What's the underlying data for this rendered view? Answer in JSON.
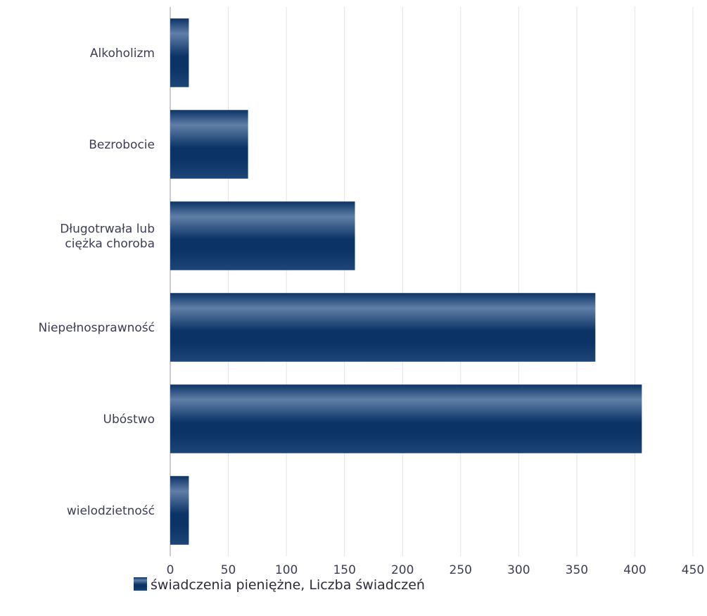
{
  "chart_data": {
    "type": "bar",
    "orientation": "horizontal",
    "categories": [
      [
        "Alkoholizm"
      ],
      [
        "Bezrobocie"
      ],
      [
        "Długotrwała lub",
        "ciężka choroba"
      ],
      [
        "Niepełnosprawność"
      ],
      [
        "Ubóstwo"
      ],
      [
        "wielodzietność"
      ]
    ],
    "series": [
      {
        "name": "świadczenia pieniężne, Liczba świadczeń",
        "values": [
          16,
          67,
          159,
          366,
          406,
          16
        ]
      }
    ],
    "xlim": [
      0,
      450
    ],
    "x_ticks": [
      0,
      50,
      100,
      150,
      200,
      250,
      300,
      350,
      400,
      450
    ],
    "grid": true,
    "legend_position": "bottom",
    "colors": {
      "bar_dark": "#0b3366",
      "bar_light": "#5f7fa7",
      "grid": "#e3e3e8",
      "axis": "#9a9aa4",
      "text": "#3d3d55"
    }
  }
}
